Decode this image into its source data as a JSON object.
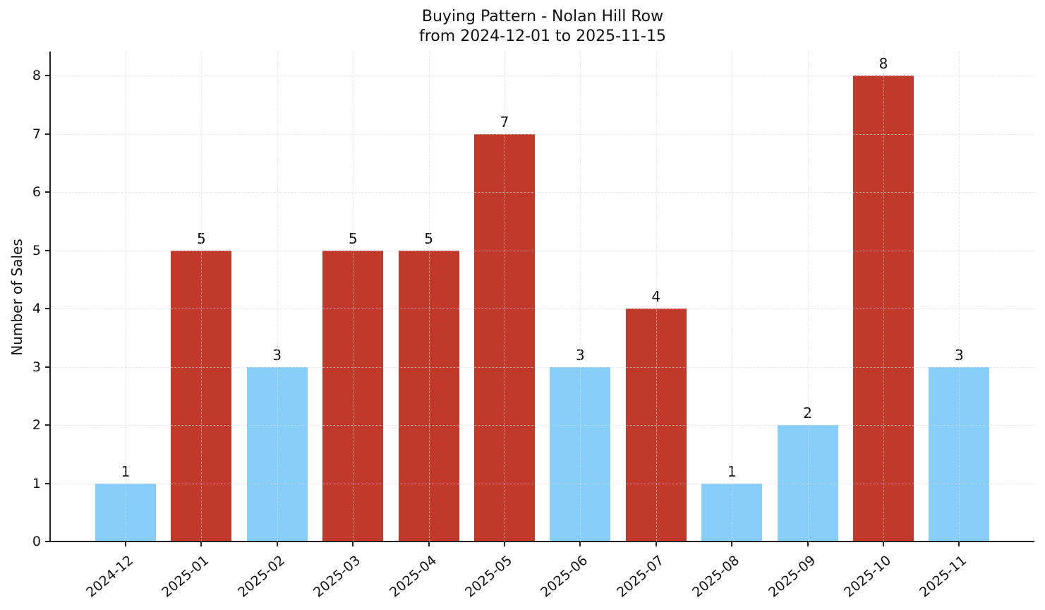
{
  "chart_data": {
    "type": "bar",
    "title": "Buying Pattern - Nolan Hill Row",
    "subtitle": "from 2024-12-01 to 2025-11-15",
    "xlabel": "",
    "ylabel": "Number of Sales",
    "categories": [
      "2024-12",
      "2025-01",
      "2025-02",
      "2025-03",
      "2025-04",
      "2025-05",
      "2025-06",
      "2025-07",
      "2025-08",
      "2025-09",
      "2025-10",
      "2025-11"
    ],
    "values": [
      1,
      5,
      3,
      5,
      5,
      7,
      3,
      4,
      1,
      2,
      8,
      3
    ],
    "bar_colors": [
      "#87CEFA",
      "#C0392B",
      "#87CEFA",
      "#C0392B",
      "#C0392B",
      "#C0392B",
      "#87CEFA",
      "#C0392B",
      "#87CEFA",
      "#87CEFA",
      "#C0392B",
      "#87CEFA"
    ],
    "color_legend": {
      "high": "#C0392B",
      "low": "#87CEFA"
    },
    "data_labels": [
      "1",
      "5",
      "3",
      "5",
      "5",
      "7",
      "3",
      "4",
      "1",
      "2",
      "8",
      "3"
    ],
    "yticks": [
      0,
      1,
      2,
      3,
      4,
      5,
      6,
      7,
      8
    ],
    "ylim": [
      0,
      8.4
    ],
    "grid": true,
    "legend": null
  }
}
